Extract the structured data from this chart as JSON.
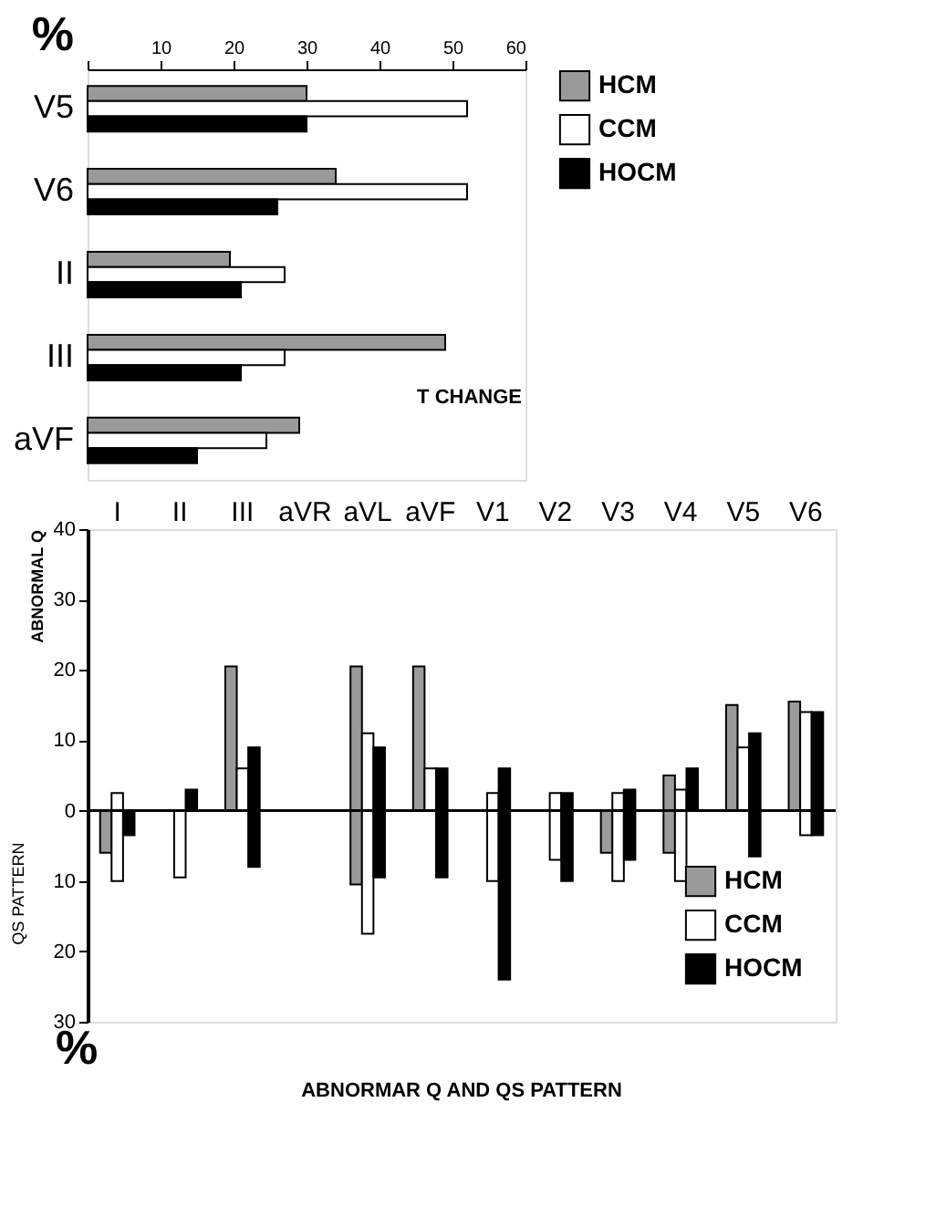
{
  "chart_data": [
    {
      "type": "bar",
      "orientation": "horizontal",
      "title": "T CHANGE",
      "xlabel": "%",
      "categories": [
        "V5",
        "V6",
        "II",
        "III",
        "aVF"
      ],
      "series": [
        {
          "name": "HCM",
          "color": "#9a9a9a",
          "values": [
            30,
            34,
            19.5,
            49,
            29
          ]
        },
        {
          "name": "CCM",
          "color": "#ffffff",
          "values": [
            52,
            52,
            27,
            27,
            24.5
          ]
        },
        {
          "name": "HOCM",
          "color": "#000000",
          "values": [
            30,
            26,
            21,
            21,
            15
          ]
        }
      ],
      "xlim": [
        0,
        60
      ],
      "xticks": [
        {
          "value": 0,
          "label": null
        },
        10,
        20,
        30,
        40,
        50,
        60
      ],
      "grid": false,
      "legend": "right"
    },
    {
      "type": "bar",
      "title": "ABNORMAR Q AND QS PATTERN",
      "ylabel": "ABNORMAL Q",
      "annotations": [
        "QS PATTERN",
        "%"
      ],
      "categories": [
        "I",
        "II",
        "III",
        "aVR",
        "aVL",
        "aVF",
        "V1",
        "V2",
        "V3",
        "V4",
        "V5",
        "V6"
      ],
      "series": [
        {
          "name": "HCM",
          "color": "#9a9a9a",
          "base": [
            -6,
            null,
            0,
            null,
            -10.5,
            0,
            null,
            null,
            -6,
            -6,
            0,
            0
          ],
          "values": [
            6,
            null,
            20.5,
            null,
            31,
            20.5,
            null,
            null,
            6,
            11,
            15,
            15.5
          ]
        },
        {
          "name": "CCM",
          "color": "#ffffff",
          "base": [
            -10,
            -9.5,
            0,
            null,
            -17.5,
            0,
            -10,
            -7,
            -10,
            -10,
            0,
            -3.5
          ],
          "values": [
            12.5,
            9.5,
            6,
            null,
            28.5,
            6,
            12.5,
            9.5,
            12.5,
            13,
            9,
            17.5
          ]
        },
        {
          "name": "HOCM",
          "color": "#000000",
          "base": [
            -3.5,
            0,
            -8,
            null,
            -9.5,
            -9.5,
            -24,
            -10,
            -7,
            0,
            -6.5,
            -3.5
          ],
          "values": [
            3.5,
            3,
            17,
            null,
            18.5,
            15.5,
            30,
            12.5,
            10,
            6,
            17.5,
            17.5
          ]
        }
      ],
      "ylim": [
        -30,
        40
      ],
      "yticks": [
        {
          "value": -30,
          "label": "30"
        },
        {
          "value": -20,
          "label": "20"
        },
        {
          "value": -10,
          "label": "10"
        },
        0,
        10,
        20,
        30,
        40
      ],
      "ref_lines": [
        {
          "axis": "y",
          "value": 0,
          "color": "#000000"
        }
      ],
      "grid": false,
      "legend": "bottom right"
    }
  ]
}
